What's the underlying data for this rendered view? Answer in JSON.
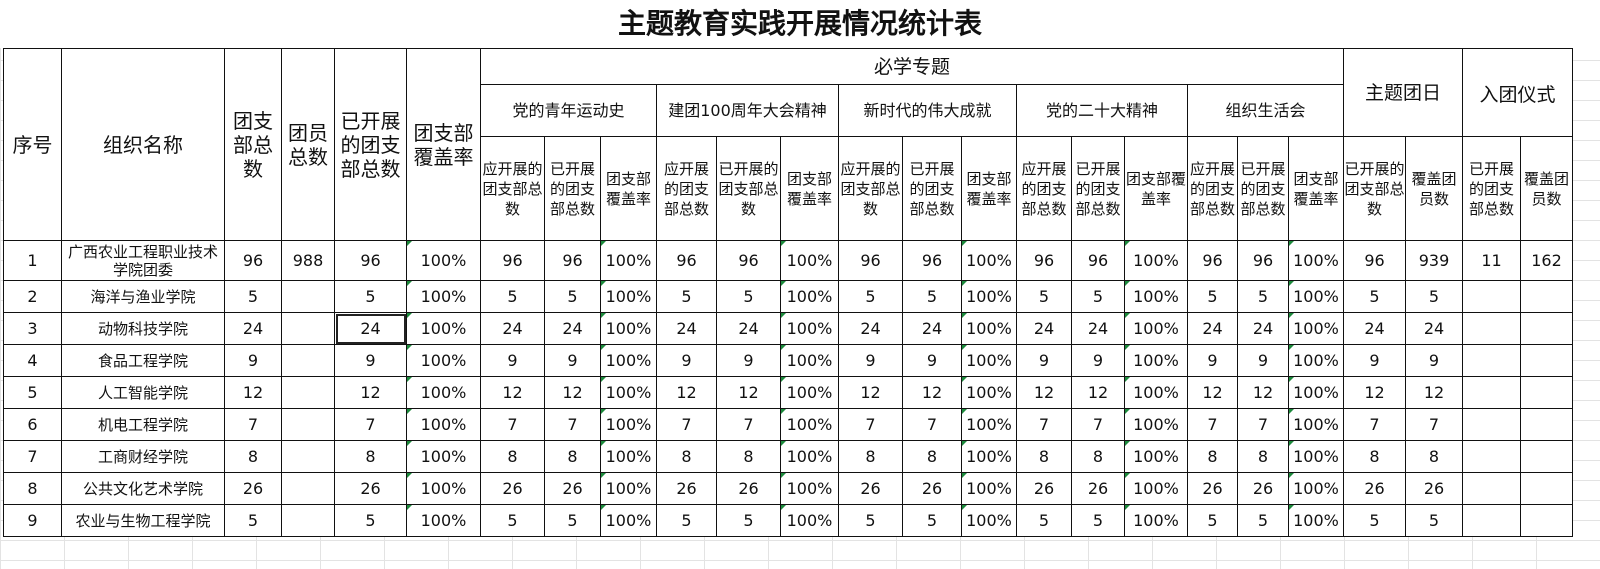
{
  "title": "主题教育实践开展情况统计表",
  "headers": {
    "seq": "序号",
    "org_name": "组织名称",
    "branch_total": "团支部总数",
    "member_total": "团员总数",
    "done_branches": "已开展的团支部总数",
    "coverage": "团支部覆盖率",
    "required_topics": "必学专题",
    "topics": [
      "党的青年运动史",
      "建团100周年大会精神",
      "新时代的伟大成就",
      "党的二十大精神",
      "组织生活会"
    ],
    "topic_cols": [
      "应开展的团支部总数",
      "已开展的团支部总数",
      "团支部覆盖率"
    ],
    "theme_day": "主题团日",
    "theme_day_cols": [
      "已开展的团支部总数",
      "覆盖团员数"
    ],
    "join_ceremony": "入团仪式",
    "join_cols": [
      "已开展的团支部总数",
      "覆盖团员数"
    ]
  },
  "rows": [
    {
      "seq": "1",
      "name": "广西农业工程职业技术学院团委",
      "branches": "96",
      "members": "988",
      "done": "96",
      "coverage": "100%",
      "topics": [
        [
          "96",
          "96",
          "100%"
        ],
        [
          "96",
          "96",
          "100%"
        ],
        [
          "96",
          "96",
          "100%"
        ],
        [
          "96",
          "96",
          "100%"
        ],
        [
          "96",
          "96",
          "100%"
        ]
      ],
      "theme_day": [
        "96",
        "939"
      ],
      "join": [
        "11",
        "162"
      ]
    },
    {
      "seq": "2",
      "name": "海洋与渔业学院",
      "branches": "5",
      "members": "",
      "done": "5",
      "coverage": "100%",
      "topics": [
        [
          "5",
          "5",
          "100%"
        ],
        [
          "5",
          "5",
          "100%"
        ],
        [
          "5",
          "5",
          "100%"
        ],
        [
          "5",
          "5",
          "100%"
        ],
        [
          "5",
          "5",
          "100%"
        ]
      ],
      "theme_day": [
        "5",
        "5"
      ],
      "join": [
        "",
        ""
      ]
    },
    {
      "seq": "3",
      "name": "动物科技学院",
      "branches": "24",
      "members": "",
      "done": "24",
      "coverage": "100%",
      "topics": [
        [
          "24",
          "24",
          "100%"
        ],
        [
          "24",
          "24",
          "100%"
        ],
        [
          "24",
          "24",
          "100%"
        ],
        [
          "24",
          "24",
          "100%"
        ],
        [
          "24",
          "24",
          "100%"
        ]
      ],
      "theme_day": [
        "24",
        "24"
      ],
      "join": [
        "",
        ""
      ]
    },
    {
      "seq": "4",
      "name": "食品工程学院",
      "branches": "9",
      "members": "",
      "done": "9",
      "coverage": "100%",
      "topics": [
        [
          "9",
          "9",
          "100%"
        ],
        [
          "9",
          "9",
          "100%"
        ],
        [
          "9",
          "9",
          "100%"
        ],
        [
          "9",
          "9",
          "100%"
        ],
        [
          "9",
          "9",
          "100%"
        ]
      ],
      "theme_day": [
        "9",
        "9"
      ],
      "join": [
        "",
        ""
      ]
    },
    {
      "seq": "5",
      "name": "人工智能学院",
      "branches": "12",
      "members": "",
      "done": "12",
      "coverage": "100%",
      "topics": [
        [
          "12",
          "12",
          "100%"
        ],
        [
          "12",
          "12",
          "100%"
        ],
        [
          "12",
          "12",
          "100%"
        ],
        [
          "12",
          "12",
          "100%"
        ],
        [
          "12",
          "12",
          "100%"
        ]
      ],
      "theme_day": [
        "12",
        "12"
      ],
      "join": [
        "",
        ""
      ]
    },
    {
      "seq": "6",
      "name": "机电工程学院",
      "branches": "7",
      "members": "",
      "done": "7",
      "coverage": "100%",
      "topics": [
        [
          "7",
          "7",
          "100%"
        ],
        [
          "7",
          "7",
          "100%"
        ],
        [
          "7",
          "7",
          "100%"
        ],
        [
          "7",
          "7",
          "100%"
        ],
        [
          "7",
          "7",
          "100%"
        ]
      ],
      "theme_day": [
        "7",
        "7"
      ],
      "join": [
        "",
        ""
      ]
    },
    {
      "seq": "7",
      "name": "工商财经学院",
      "branches": "8",
      "members": "",
      "done": "8",
      "coverage": "100%",
      "topics": [
        [
          "8",
          "8",
          "100%"
        ],
        [
          "8",
          "8",
          "100%"
        ],
        [
          "8",
          "8",
          "100%"
        ],
        [
          "8",
          "8",
          "100%"
        ],
        [
          "8",
          "8",
          "100%"
        ]
      ],
      "theme_day": [
        "8",
        "8"
      ],
      "join": [
        "",
        ""
      ]
    },
    {
      "seq": "8",
      "name": "公共文化艺术学院",
      "branches": "26",
      "members": "",
      "done": "26",
      "coverage": "100%",
      "topics": [
        [
          "26",
          "26",
          "100%"
        ],
        [
          "26",
          "26",
          "100%"
        ],
        [
          "26",
          "26",
          "100%"
        ],
        [
          "26",
          "26",
          "100%"
        ],
        [
          "26",
          "26",
          "100%"
        ]
      ],
      "theme_day": [
        "26",
        "26"
      ],
      "join": [
        "",
        ""
      ]
    },
    {
      "seq": "9",
      "name": "农业与生物工程学院",
      "branches": "5",
      "members": "",
      "done": "5",
      "coverage": "100%",
      "topics": [
        [
          "5",
          "5",
          "100%"
        ],
        [
          "5",
          "5",
          "100%"
        ],
        [
          "5",
          "5",
          "100%"
        ],
        [
          "5",
          "5",
          "100%"
        ],
        [
          "5",
          "5",
          "100%"
        ]
      ],
      "theme_day": [
        "5",
        "5"
      ],
      "join": [
        "",
        ""
      ]
    }
  ]
}
